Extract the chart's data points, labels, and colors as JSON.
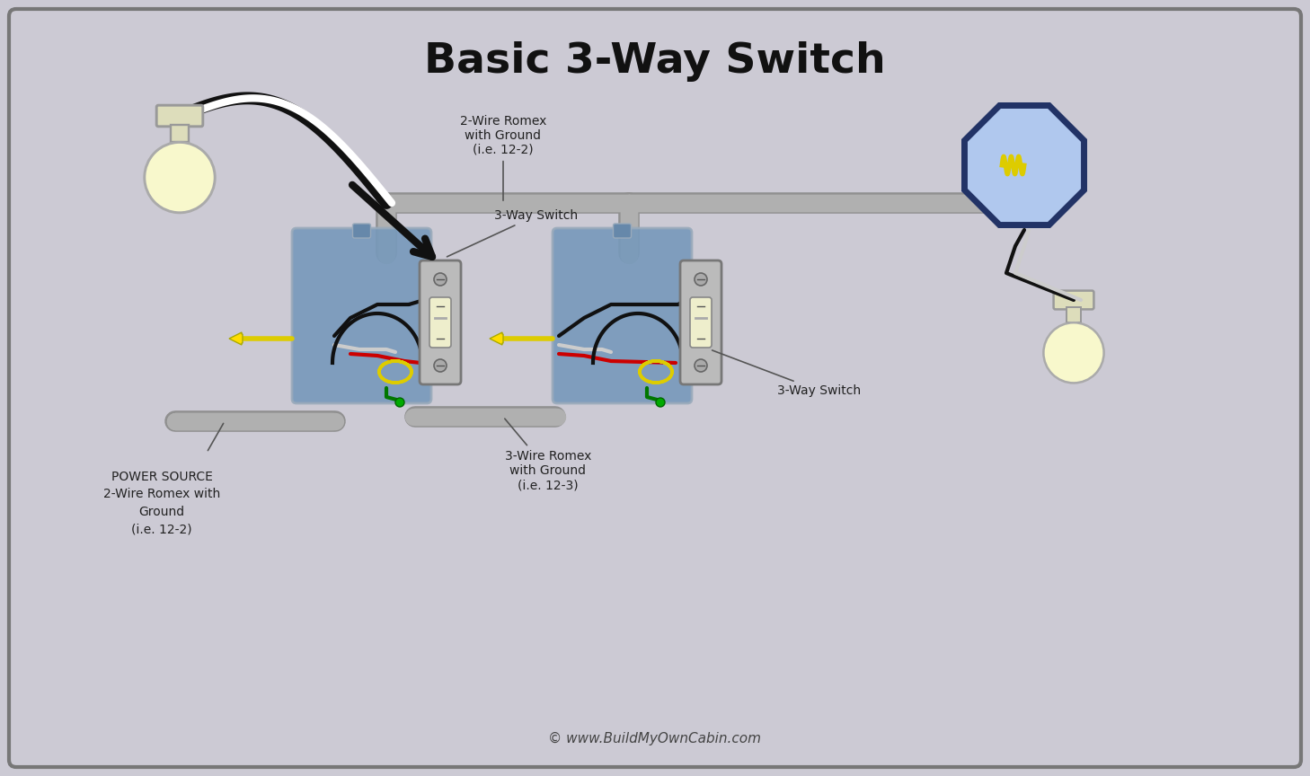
{
  "title": "Basic 3-Way Switch",
  "bg_color": "#cccad4",
  "border_color": "#888888",
  "title_fontsize": 34,
  "title_color": "#111111",
  "copyright_text": "© www.BuildMyOwnCabin.com",
  "labels": {
    "switch1": "3-Way Switch",
    "switch2": "3-Way Switch",
    "power_source": "POWER SOURCE\n2-Wire Romex with\nGround\n(i.e. 12-2)",
    "romex_top": "2-Wire Romex\nwith Ground\n(i.e. 12-2)",
    "romex_bottom": "3-Wire Romex\nwith Ground\n(i.e. 12-3)"
  },
  "colors": {
    "black_wire": "#111111",
    "white_wire": "#cccccc",
    "red_wire": "#cc0000",
    "yellow_wire": "#ddcc00",
    "green_wire": "#007700",
    "gray_conduit": "#aaaaaa",
    "switch_box": "#7799cc",
    "switch_body": "#bbbbbb",
    "switch_toggle": "#eeeecc",
    "bulb_body": "#f8f8cc",
    "bulb_base": "#ddddbb",
    "junction_fill": "#b0c8ee",
    "junction_border": "#223366",
    "arrow_black": "#111111"
  }
}
